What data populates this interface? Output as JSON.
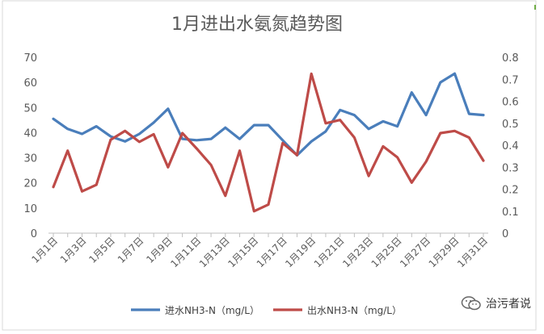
{
  "chart_data": {
    "type": "line",
    "title": "1月进出水氨氮趋势图",
    "categories": [
      "1月1日",
      "1月2日",
      "1月3日",
      "1月4日",
      "1月5日",
      "1月6日",
      "1月7日",
      "1月8日",
      "1月9日",
      "1月10日",
      "1月11日",
      "1月12日",
      "1月13日",
      "1月14日",
      "1月15日",
      "1月16日",
      "1月17日",
      "1月18日",
      "1月19日",
      "1月20日",
      "1月21日",
      "1月22日",
      "1月23日",
      "1月24日",
      "1月25日",
      "1月26日",
      "1月27日",
      "1月28日",
      "1月29日",
      "1月30日",
      "1月31日"
    ],
    "x_tick_labels": [
      "1月1日",
      "1月3日",
      "1月5日",
      "1月7日",
      "1月9日",
      "1月11日",
      "1月13日",
      "1月15日",
      "1月17日",
      "1月19日",
      "1月21日",
      "1月23日",
      "1月25日",
      "1月27日",
      "1月29日",
      "1月31日"
    ],
    "y_left": {
      "ticks": [
        0,
        10,
        20,
        30,
        40,
        50,
        60,
        70
      ],
      "lim": [
        0,
        70
      ]
    },
    "y_right": {
      "ticks": [
        "0",
        "0.1",
        "0.2",
        "0.3",
        "0.4",
        "0.5",
        "0.6",
        "0.7",
        "0.8"
      ],
      "lim": [
        0,
        0.8
      ]
    },
    "series": [
      {
        "name": "进水NH3-N（mg/L）",
        "axis": "left",
        "color": "#4a7ebb",
        "values": [
          45.5,
          41.5,
          39.5,
          42.5,
          38.5,
          36.5,
          39.5,
          44,
          49.5,
          37.5,
          37,
          37.5,
          42,
          37.5,
          43,
          43,
          37,
          31,
          36.5,
          40.5,
          49,
          47,
          41.5,
          44.5,
          42.5,
          56,
          47,
          60,
          63.5,
          47.5,
          47
        ]
      },
      {
        "name": "出水NH3-N（mg/L）",
        "axis": "right",
        "color": "#be4b48",
        "values": [
          0.21,
          0.375,
          0.19,
          0.22,
          0.425,
          0.465,
          0.415,
          0.45,
          0.3,
          0.455,
          0.385,
          0.31,
          0.17,
          0.375,
          0.1,
          0.13,
          0.41,
          0.355,
          0.725,
          0.5,
          0.515,
          0.435,
          0.26,
          0.395,
          0.345,
          0.23,
          0.325,
          0.455,
          0.465,
          0.435,
          0.33
        ]
      }
    ],
    "legend_position": "bottom",
    "grid": false
  },
  "watermark": {
    "text": "治污者说",
    "icon": "wechat-icon"
  }
}
